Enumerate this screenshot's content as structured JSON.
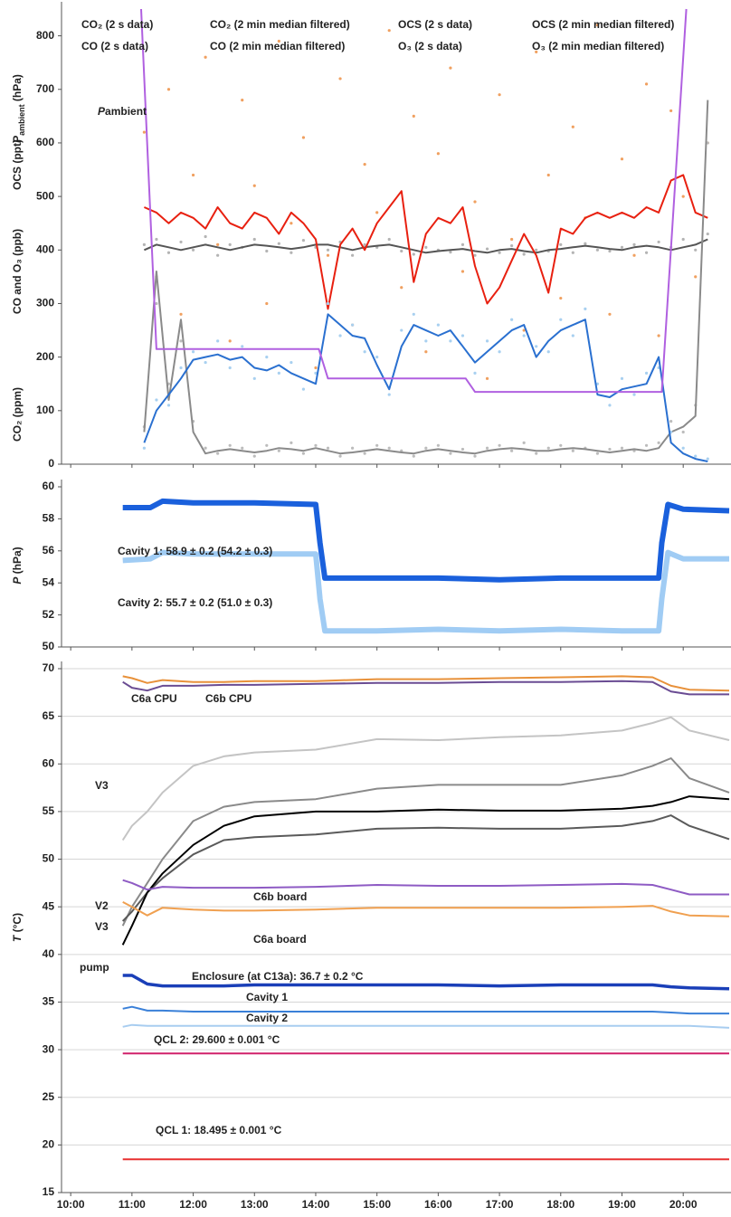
{
  "chart_data": [
    {
      "type": "line",
      "ylabels": [
        [
          "CO₂ (ppm)"
        ],
        [
          "CO and O₃ (ppb)"
        ],
        [
          "OCS (ppt)"
        ],
        [
          "P",
          "ambient",
          " (hPa)"
        ]
      ],
      "pambient_label": [
        "P",
        "ambient"
      ],
      "xlim": [
        9.85,
        20.78
      ],
      "ylim": [
        0,
        850
      ],
      "yticks": [
        0,
        100,
        200,
        300,
        400,
        500,
        600,
        700,
        800
      ],
      "x": [
        11.2,
        11.4,
        11.6,
        11.8,
        12.0,
        12.2,
        12.4,
        12.6,
        12.8,
        13.0,
        13.2,
        13.4,
        13.6,
        13.8,
        14.0,
        14.2,
        14.4,
        14.6,
        14.8,
        15.0,
        15.2,
        15.4,
        15.6,
        15.8,
        16.0,
        16.2,
        16.4,
        16.6,
        16.8,
        17.0,
        17.2,
        17.4,
        17.6,
        17.8,
        18.0,
        18.2,
        18.4,
        18.6,
        18.8,
        19.0,
        19.2,
        19.4,
        19.6,
        19.8,
        20.0,
        20.2,
        20.4
      ],
      "series": [
        {
          "name": "CO₂ (2 s data)",
          "mode": "markers",
          "color": "#b4b4b4",
          "label_color": "#aaaaaa",
          "values": [
            410,
            420,
            395,
            415,
            400,
            425,
            390,
            410,
            405,
            420,
            398,
            412,
            395,
            418,
            405,
            400,
            415,
            390,
            410,
            405,
            420,
            398,
            392,
            405,
            400,
            396,
            410,
            390,
            402,
            395,
            408,
            392,
            400,
            398,
            410,
            395,
            412,
            400,
            398,
            405,
            410,
            395,
            415,
            405,
            420,
            400,
            430
          ]
        },
        {
          "name": "CO₂ (2 min median filtered)",
          "mode": "line",
          "color": "#555555",
          "label_color": "#222222",
          "values": [
            400,
            410,
            405,
            400,
            405,
            410,
            405,
            400,
            405,
            410,
            408,
            405,
            402,
            405,
            410,
            410,
            405,
            400,
            405,
            408,
            410,
            405,
            400,
            395,
            398,
            400,
            402,
            398,
            395,
            400,
            402,
            398,
            395,
            400,
            402,
            405,
            408,
            405,
            402,
            400,
            405,
            408,
            405,
            400,
            405,
            410,
            420
          ]
        },
        {
          "name": "OCS (2 s data)",
          "mode": "markers",
          "color": "#f0a060",
          "label_color": "#f0a050",
          "values": [
            620,
            350,
            700,
            280,
            540,
            760,
            410,
            230,
            680,
            520,
            300,
            790,
            450,
            610,
            180,
            390,
            720,
            260,
            560,
            470,
            810,
            330,
            650,
            210,
            580,
            740,
            360,
            490,
            160,
            690,
            420,
            250,
            770,
            540,
            310,
            630,
            460,
            820,
            280,
            570,
            390,
            710,
            240,
            660,
            500,
            350,
            600
          ]
        },
        {
          "name": "OCS (2 min median filtered)",
          "mode": "line",
          "color": "#e82010",
          "label_color": "#e02020",
          "values": [
            480,
            470,
            450,
            470,
            460,
            440,
            480,
            450,
            440,
            470,
            460,
            430,
            470,
            450,
            420,
            290,
            410,
            440,
            400,
            450,
            480,
            510,
            340,
            430,
            460,
            450,
            480,
            370,
            300,
            330,
            380,
            430,
            390,
            320,
            440,
            430,
            460,
            470,
            460,
            470,
            460,
            480,
            470,
            530,
            540,
            470,
            460
          ]
        },
        {
          "name": "CO (2 s data)",
          "mode": "markers",
          "color": "#bcbcbc",
          "label_color": "#bbbbbb",
          "values": [
            70,
            300,
            150,
            230,
            80,
            30,
            20,
            35,
            30,
            15,
            35,
            25,
            40,
            20,
            35,
            30,
            15,
            30,
            20,
            35,
            30,
            25,
            15,
            30,
            35,
            20,
            28,
            15,
            30,
            35,
            25,
            40,
            20,
            30,
            35,
            25,
            30,
            20,
            28,
            30,
            25,
            35,
            40,
            80,
            60,
            110,
            600
          ]
        },
        {
          "name": "CO (2 min median filtered)",
          "mode": "line",
          "color": "#8a8a8a",
          "label_color": "#555555",
          "values": [
            60,
            360,
            120,
            270,
            60,
            20,
            25,
            28,
            25,
            22,
            25,
            30,
            28,
            25,
            30,
            25,
            20,
            22,
            25,
            28,
            25,
            22,
            20,
            25,
            28,
            25,
            22,
            20,
            25,
            28,
            30,
            28,
            25,
            25,
            28,
            30,
            28,
            25,
            22,
            25,
            28,
            25,
            30,
            60,
            70,
            90,
            680
          ]
        },
        {
          "name": "O₃ (2 s data)",
          "mode": "markers",
          "color": "#a8d0f0",
          "label_color": "#8cc4f0",
          "values": [
            30,
            120,
            110,
            180,
            210,
            190,
            230,
            180,
            220,
            160,
            200,
            170,
            190,
            140,
            170,
            300,
            240,
            260,
            210,
            200,
            130,
            250,
            280,
            230,
            260,
            230,
            240,
            170,
            230,
            210,
            270,
            240,
            220,
            210,
            270,
            240,
            290,
            150,
            110,
            160,
            130,
            170,
            180,
            60,
            30,
            15,
            10
          ]
        },
        {
          "name": "O₃ (2 min median filtered)",
          "mode": "line",
          "color": "#2a70d0",
          "label_color": "#1a50c8",
          "values": [
            40,
            100,
            130,
            160,
            195,
            200,
            205,
            195,
            200,
            180,
            175,
            185,
            170,
            160,
            150,
            280,
            260,
            240,
            235,
            185,
            140,
            220,
            260,
            250,
            240,
            250,
            220,
            190,
            210,
            230,
            250,
            260,
            200,
            230,
            250,
            260,
            270,
            130,
            125,
            140,
            145,
            150,
            200,
            40,
            20,
            10,
            5
          ]
        },
        {
          "mode": "line",
          "color": "#b060e0",
          "x": [
            11.15,
            11.4,
            14.05,
            14.2,
            16.45,
            16.6,
            19.65,
            20.05
          ],
          "values": [
            850,
            215,
            215,
            160,
            160,
            135,
            135,
            850
          ]
        }
      ]
    },
    {
      "type": "line",
      "ylabels": [
        [
          "P",
          " (hPa)"
        ]
      ],
      "xlim": [
        9.85,
        20.78
      ],
      "ylim": [
        50,
        60
      ],
      "yticks": [
        50,
        52,
        54,
        56,
        58,
        60
      ],
      "x": [
        10.85,
        11.3,
        11.5,
        12,
        13,
        14,
        14.07,
        14.15,
        15,
        16,
        17,
        18,
        19,
        19.6,
        19.65,
        19.75,
        20,
        20.75
      ],
      "annotations": [
        {
          "text": "Cavity 1: 58.9 ± 0.2 (54.2 ± 0.3)",
          "color": "#1a5ad8"
        },
        {
          "text": "Cavity 2: 55.7 ± 0.2 (51.0 ± 0.3)",
          "color": "#9cc8f0"
        }
      ],
      "series": [
        {
          "mode": "line",
          "color": "#a0ccf4",
          "values": [
            55.4,
            55.5,
            55.9,
            55.8,
            55.8,
            55.8,
            53,
            51.0,
            51.0,
            51.1,
            51.0,
            51.1,
            51.0,
            51.0,
            53,
            55.9,
            55.5,
            55.5
          ]
        },
        {
          "mode": "line",
          "color": "#1a60dc",
          "values": [
            58.7,
            58.7,
            59.1,
            59.0,
            59.0,
            58.9,
            56.5,
            54.3,
            54.3,
            54.3,
            54.2,
            54.3,
            54.3,
            54.3,
            56.5,
            58.9,
            58.6,
            58.5
          ]
        }
      ]
    },
    {
      "type": "line",
      "ylabels": [
        [
          "T",
          " (°C)"
        ]
      ],
      "xlim": [
        9.85,
        20.78
      ],
      "ylim": [
        15,
        70
      ],
      "yticks": [
        15,
        20,
        25,
        30,
        35,
        40,
        45,
        50,
        55,
        60,
        65,
        70
      ],
      "grid": true,
      "xticks": [
        {
          "value": 10,
          "label": "10:00"
        },
        {
          "value": 11,
          "label": "11:00"
        },
        {
          "value": 12,
          "label": "12:00"
        },
        {
          "value": 13,
          "label": "13:00"
        },
        {
          "value": 14,
          "label": "14:00"
        },
        {
          "value": 15,
          "label": "15:00"
        },
        {
          "value": 16,
          "label": "16:00"
        },
        {
          "value": 17,
          "label": "17:00"
        },
        {
          "value": 18,
          "label": "18:00"
        },
        {
          "value": 19,
          "label": "19:00"
        },
        {
          "value": 20,
          "label": "20:00"
        }
      ],
      "x": [
        10.85,
        11.0,
        11.25,
        11.5,
        12,
        12.5,
        13,
        14,
        15,
        16,
        17,
        18,
        19,
        19.5,
        19.8,
        20.1,
        20.75
      ],
      "series": [
        {
          "name": "C6a CPU",
          "color": "#e8913a",
          "values": [
            69.2,
            69.0,
            68.5,
            68.8,
            68.6,
            68.6,
            68.7,
            68.7,
            68.9,
            68.9,
            69.0,
            69.1,
            69.2,
            69.1,
            68.2,
            67.8,
            67.7
          ]
        },
        {
          "name": "C6b CPU",
          "color": "#6a4c93",
          "values": [
            68.6,
            68.0,
            67.7,
            68.2,
            68.2,
            68.3,
            68.3,
            68.4,
            68.5,
            68.5,
            68.6,
            68.6,
            68.7,
            68.6,
            67.6,
            67.3,
            67.3
          ]
        },
        {
          "name": "V3",
          "color": "#c4c4c4",
          "values": [
            52,
            53.5,
            55,
            57,
            59.8,
            60.8,
            61.2,
            61.5,
            62.6,
            62.5,
            62.8,
            63,
            63.5,
            64.3,
            64.9,
            63.5,
            62.5
          ]
        },
        {
          "name": "V2",
          "color": "#8a8a8a",
          "values": [
            43,
            45,
            47.5,
            50,
            54,
            55.5,
            56,
            56.3,
            57.4,
            57.8,
            57.8,
            57.8,
            58.8,
            59.8,
            60.6,
            58.5,
            57
          ]
        },
        {
          "name": "V3",
          "color": "#5a5a5a",
          "values": [
            43.5,
            44.5,
            46.5,
            48,
            50.5,
            52,
            52.3,
            52.6,
            53.2,
            53.3,
            53.2,
            53.2,
            53.5,
            54,
            54.6,
            53.5,
            52.1
          ]
        },
        {
          "name": "pump",
          "color": "#000000",
          "values": [
            41,
            43,
            46.5,
            48.5,
            51.5,
            53.5,
            54.5,
            55,
            55,
            55.2,
            55.1,
            55.1,
            55.3,
            55.6,
            56,
            56.6,
            56.3
          ]
        },
        {
          "name": "C6b board",
          "color": "#8e5bc4",
          "values": [
            47.8,
            47.5,
            46.8,
            47.1,
            47,
            47,
            47,
            47.1,
            47.3,
            47.2,
            47.2,
            47.3,
            47.4,
            47.3,
            46.8,
            46.3,
            46.3
          ]
        },
        {
          "name": "C6a board",
          "color": "#f0a050",
          "values": [
            45.5,
            45,
            44.1,
            44.9,
            44.7,
            44.6,
            44.6,
            44.7,
            44.9,
            44.9,
            44.9,
            44.9,
            45,
            45.1,
            44.5,
            44.1,
            44
          ]
        },
        {
          "name": "Enclosure (at C13a): 36.7 ± 0.2 °C",
          "color": "#1a3fb8",
          "values": [
            37.8,
            37.8,
            36.9,
            36.7,
            36.7,
            36.7,
            36.8,
            36.8,
            36.8,
            36.8,
            36.7,
            36.8,
            36.8,
            36.8,
            36.6,
            36.5,
            36.4
          ]
        },
        {
          "name": "Cavity 1",
          "color": "#3a80d8",
          "values": [
            34.3,
            34.5,
            34.1,
            34.1,
            34.0,
            34.0,
            34.0,
            34.0,
            34.0,
            34.0,
            34.0,
            34.0,
            34.0,
            34.0,
            33.9,
            33.8,
            33.8
          ]
        },
        {
          "name": "Cavity 2",
          "color": "#a8cdf0",
          "values": [
            32.4,
            32.6,
            32.5,
            32.5,
            32.5,
            32.5,
            32.5,
            32.5,
            32.5,
            32.5,
            32.5,
            32.5,
            32.5,
            32.5,
            32.5,
            32.5,
            32.3
          ]
        },
        {
          "name": "QCL 2: 29.600 ± 0.001 °C",
          "color": "#d0206a",
          "values": [
            29.6,
            29.6,
            29.6,
            29.6,
            29.6,
            29.6,
            29.6,
            29.6,
            29.6,
            29.6,
            29.6,
            29.6,
            29.6,
            29.6,
            29.6,
            29.6,
            29.6
          ]
        },
        {
          "name": "QCL 1: 18.495 ± 0.001 °C",
          "color": "#e83030",
          "values": [
            18.495,
            18.495,
            18.495,
            18.495,
            18.495,
            18.495,
            18.495,
            18.495,
            18.495,
            18.495,
            18.495,
            18.495,
            18.495,
            18.495,
            18.495,
            18.495,
            18.495
          ]
        }
      ]
    }
  ]
}
